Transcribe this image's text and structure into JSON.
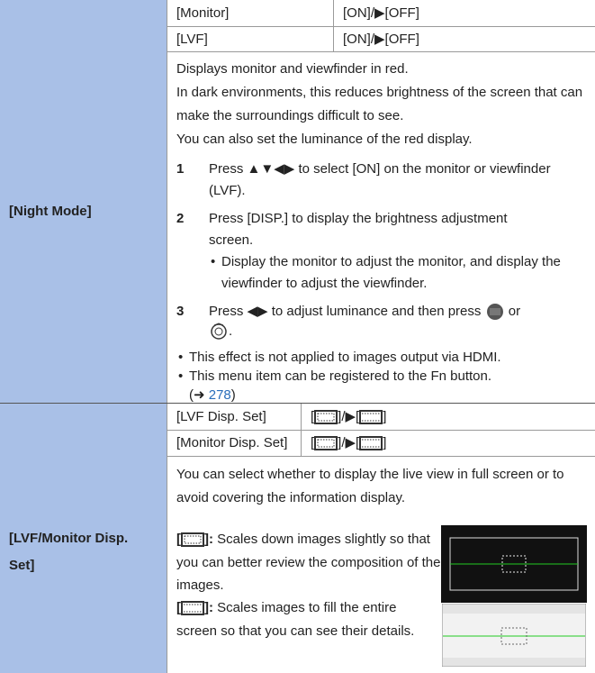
{
  "table": {
    "rows": [
      {
        "label": "[Night Mode]",
        "settings": [
          {
            "name": "[Monitor]",
            "value": "[ON]/▶[OFF]"
          },
          {
            "name": "[LVF]",
            "value": "[ON]/▶[OFF]"
          }
        ],
        "description": [
          "Displays monitor and viewfinder in red.",
          "In dark environments, this reduces brightness of the screen that can make the surroundings difficult to see.",
          "You can also set the luminance of the red display."
        ],
        "steps": [
          {
            "number": "1",
            "text": "Press ▲▼◀▶ to select [ON] on the monitor or viewfinder (LVF)."
          },
          {
            "number": "2",
            "text": "Press [DISP.] to display the brightness adjustment screen.",
            "note": "Display the monitor to adjust the monitor, and display the viewfinder to adjust the viewfinder."
          },
          {
            "number": "3",
            "text": [
              "Press ◀▶ to adjust luminance and then press",
              "or",
              "."
            ]
          }
        ],
        "notes": [
          "This effect is not applied to images output via HDMI.",
          [
            "This menu item can be registered to the Fn button.",
            "(➜ ",
            "278",
            ")"
          ]
        ]
      },
      {
        "label": "[LVF/Monitor Disp. Set]",
        "settings": [
          {
            "name": "[LVF Disp. Set]",
            "value": [
              "[",
              "]/▶[",
              "]"
            ]
          },
          {
            "name": "[Monitor Disp. Set]",
            "value": [
              "[",
              "]/▶[",
              "]"
            ]
          }
        ],
        "description": [
          "You can select whether to display the live view in full screen or to avoid covering the information display."
        ],
        "options": [
          {
            "label": [
              "[",
              "]:"
            ],
            "text": "Scales down images slightly so that you can better review the composition of the images."
          },
          {
            "label": [
              "[",
              "]:"
            ],
            "text": "Scales images to fill the entire screen so that you can see their details."
          }
        ]
      }
    ]
  }
}
